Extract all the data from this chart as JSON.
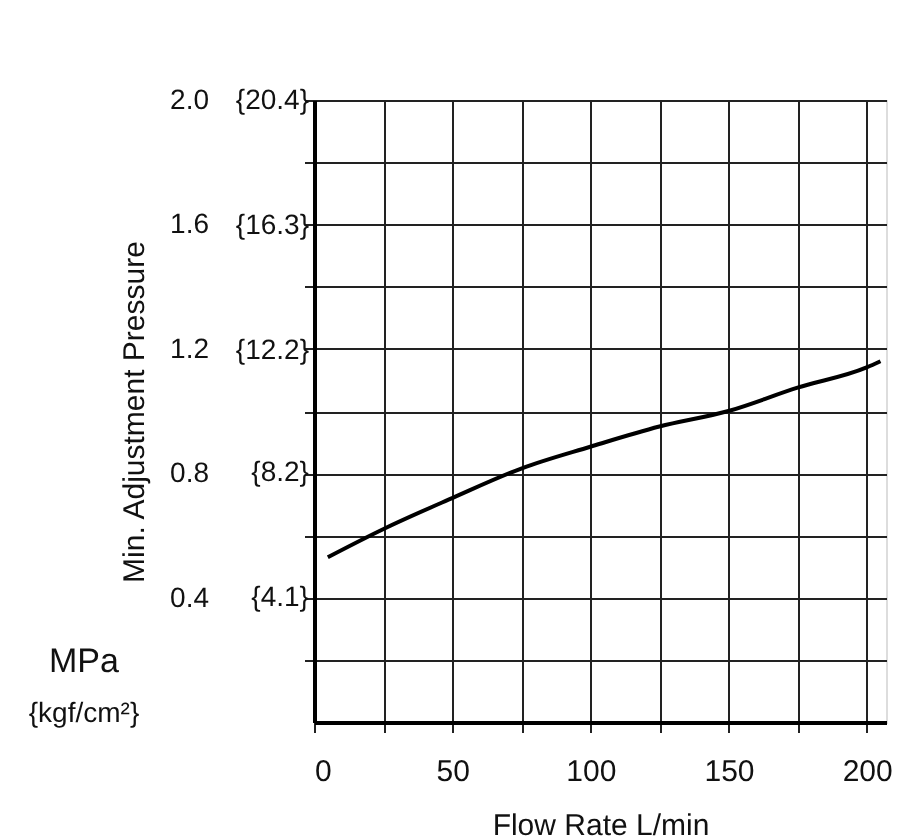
{
  "chart_data": {
    "type": "line",
    "xlabel": "Flow Rate  L/min",
    "ylabel": "Min. Adjustment Pressure",
    "annotations": [
      "MPa",
      "{kgf/cm²}"
    ],
    "x": [
      5,
      25,
      50,
      75,
      100,
      125,
      150,
      175,
      200,
      205
    ],
    "series": [
      {
        "color": "#000000",
        "values": [
          0.53,
          0.62,
          0.72,
          0.815,
          0.885,
          0.95,
          1.0,
          1.075,
          1.14,
          1.16
        ]
      }
    ],
    "xlim": [
      0,
      207
    ],
    "xticks": [
      0,
      {
        "value": 25,
        "label": null
      },
      50,
      {
        "value": 75,
        "label": null
      },
      100,
      {
        "value": 125,
        "label": null
      },
      150,
      {
        "value": 175,
        "label": null
      },
      200
    ],
    "ylim": [
      0,
      2.0
    ],
    "yticks": [
      {
        "value": 0.2,
        "label": null
      },
      0.4,
      {
        "value": 0.6,
        "label": null
      },
      0.8,
      {
        "value": 1.0,
        "label": null
      },
      1.2,
      {
        "value": 1.4,
        "label": null
      },
      1.6,
      {
        "value": 1.8,
        "label": null
      },
      {
        "value": 2.0,
        "label": "2.0"
      }
    ],
    "y2lim": [
      0,
      20.4
    ],
    "y2ticks": [
      {
        "value": 4.1,
        "label": "{4.1}"
      },
      {
        "value": 8.2,
        "label": "{8.2}"
      },
      {
        "value": 12.2,
        "label": "{12.2}"
      },
      {
        "value": 16.3,
        "label": "{16.3}"
      },
      {
        "value": 20.4,
        "label": "{20.4}"
      }
    ],
    "grid": true,
    "line_style": "solid",
    "marker": "none"
  }
}
